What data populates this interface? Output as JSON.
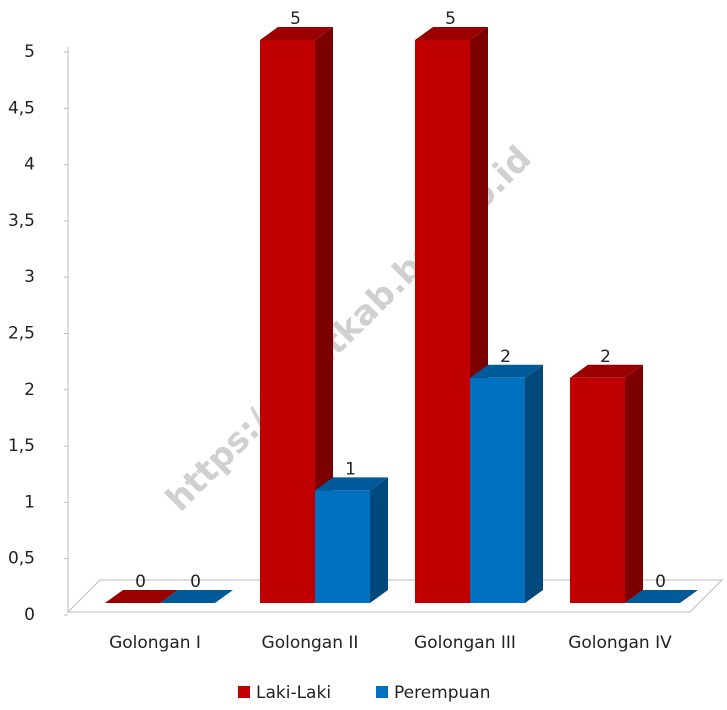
{
  "chart_data": {
    "type": "bar3d",
    "categories": [
      "Golongan I",
      "Golongan II",
      "Golongan III",
      "Golongan IV"
    ],
    "series": [
      {
        "name": "Laki-Laki",
        "color": "#c00000",
        "values": [
          0,
          5,
          5,
          2
        ]
      },
      {
        "name": "Perempuan",
        "color": "#0070c0",
        "values": [
          0,
          1,
          2,
          0
        ]
      }
    ],
    "ylim": [
      0,
      5
    ],
    "yticks": [
      0,
      {
        "value": 0.5,
        "label": "0,5"
      },
      1,
      {
        "value": 1.5,
        "label": "1,5"
      },
      2,
      {
        "value": 2.5,
        "label": "2,5"
      },
      3,
      {
        "value": 3.5,
        "label": "3,5"
      },
      4,
      {
        "value": 4.5,
        "label": "4,5"
      },
      5
    ],
    "legend": "bottom",
    "watermark": "https://lahatkab.bps.go.id"
  }
}
